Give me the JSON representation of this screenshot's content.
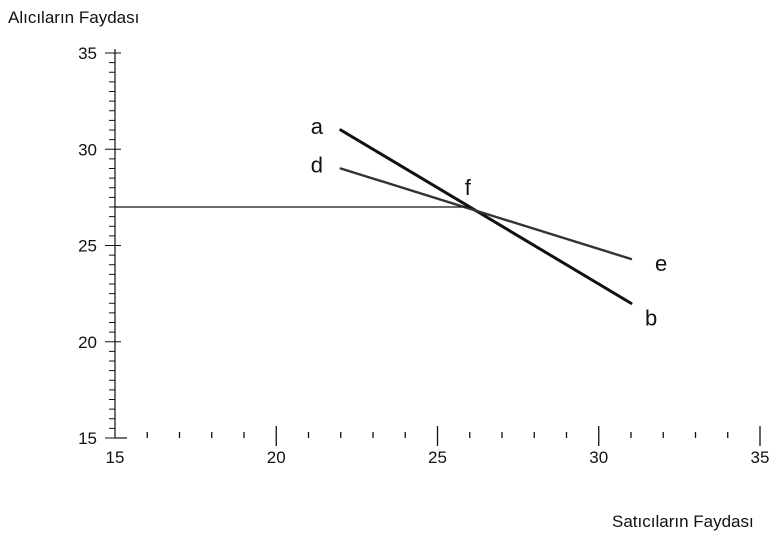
{
  "chart_data": {
    "type": "line",
    "ylabel": "Alıcıların Faydası",
    "xlabel": "Satıcıların Faydası",
    "xlim": [
      15,
      35
    ],
    "ylim": [
      15,
      35
    ],
    "x_ticks": [
      "15",
      "20",
      "25",
      "30",
      "35"
    ],
    "y_ticks": [
      "15",
      "20",
      "25",
      "30",
      "35"
    ],
    "grid": false,
    "series": [
      {
        "name": "ab",
        "x": [
          22,
          31
        ],
        "y": [
          31,
          22
        ]
      },
      {
        "name": "de",
        "x": [
          22,
          31
        ],
        "y": [
          29,
          24.3
        ]
      },
      {
        "name": "f",
        "x": [
          15,
          26
        ],
        "y": [
          27,
          27
        ]
      }
    ],
    "annotations": [
      {
        "text": "a",
        "x": 22,
        "y": 31
      },
      {
        "text": "d",
        "x": 22,
        "y": 29
      },
      {
        "text": "f",
        "x": 26,
        "y": 27
      },
      {
        "text": "e",
        "x": 31,
        "y": 24.3
      },
      {
        "text": "b",
        "x": 31,
        "y": 22
      }
    ]
  }
}
